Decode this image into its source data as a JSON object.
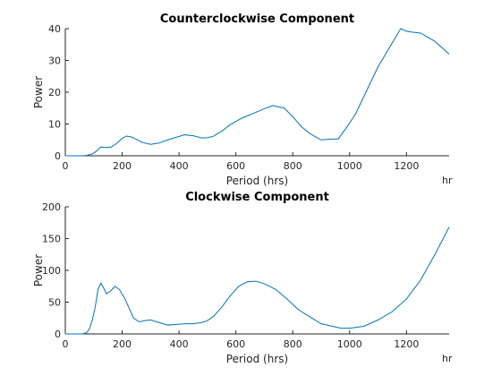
{
  "chart_data": [
    {
      "type": "line",
      "title": "Counterclockwise Component",
      "xlabel": "Period (hrs)",
      "ylabel": "Power",
      "x_unit_label": "hr",
      "xlim": [
        0,
        1350
      ],
      "ylim": [
        0,
        40
      ],
      "xticks": [
        0,
        200,
        400,
        600,
        800,
        1000,
        1200
      ],
      "yticks": [
        0,
        10,
        20,
        30,
        40
      ],
      "grid": false,
      "series": [
        {
          "color": "#0072bd",
          "x": [
            0,
            60,
            75,
            95,
            110,
            125,
            140,
            160,
            180,
            200,
            215,
            230,
            250,
            270,
            300,
            330,
            360,
            390,
            420,
            450,
            480,
            500,
            520,
            550,
            580,
            620,
            660,
            700,
            730,
            770,
            800,
            830,
            860,
            900,
            940,
            960,
            990,
            1020,
            1060,
            1100,
            1140,
            1175,
            1180,
            1200,
            1220,
            1250,
            1300,
            1350
          ],
          "y": [
            0,
            0,
            0.1,
            0.6,
            1.5,
            2.8,
            2.6,
            2.7,
            3.8,
            5.5,
            6.2,
            6.0,
            5.2,
            4.2,
            3.6,
            4.0,
            5.0,
            5.8,
            6.6,
            6.3,
            5.6,
            5.7,
            6.1,
            7.7,
            9.8,
            11.8,
            13.3,
            14.8,
            15.8,
            15.0,
            12.3,
            9.2,
            7.0,
            5.0,
            5.3,
            5.3,
            9.0,
            13.0,
            20.5,
            28.0,
            34.0,
            39.3,
            40.0,
            39.2,
            38.9,
            38.6,
            36.0,
            32.0
          ]
        }
      ]
    },
    {
      "type": "line",
      "title": "Clockwise Component",
      "xlabel": "Period (hrs)",
      "ylabel": "Power",
      "x_unit_label": "hr",
      "xlim": [
        0,
        1350
      ],
      "ylim": [
        0,
        200
      ],
      "xticks": [
        0,
        200,
        400,
        600,
        800,
        1000,
        1200
      ],
      "yticks": [
        0,
        50,
        100,
        150,
        200
      ],
      "grid": false,
      "series": [
        {
          "color": "#0072bd",
          "x": [
            0,
            60,
            75,
            85,
            95,
            105,
            115,
            125,
            135,
            145,
            160,
            175,
            190,
            210,
            220,
            240,
            260,
            280,
            300,
            330,
            360,
            390,
            420,
            450,
            480,
            500,
            520,
            550,
            580,
            610,
            640,
            670,
            700,
            740,
            780,
            820,
            860,
            900,
            940,
            970,
            1000,
            1050,
            1100,
            1150,
            1200,
            1250,
            1300,
            1350
          ],
          "y": [
            0,
            0,
            2,
            8,
            22,
            42,
            70,
            80,
            72,
            63,
            68,
            75,
            70,
            55,
            45,
            25,
            19,
            21,
            22,
            18,
            14,
            15,
            16,
            16,
            18,
            21,
            27,
            42,
            60,
            75,
            82,
            83,
            79,
            70,
            55,
            38,
            27,
            16,
            12,
            9,
            9,
            12,
            22,
            35,
            55,
            85,
            125,
            168
          ]
        }
      ]
    }
  ]
}
